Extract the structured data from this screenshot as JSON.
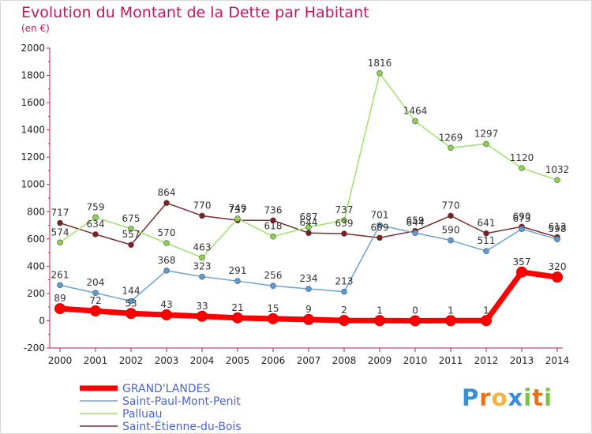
{
  "chart_data": {
    "type": "line",
    "title": "Evolution du Montant de la Dette par Habitant",
    "subtitle": "(en €)",
    "x": [
      "2000",
      "2001",
      "2002",
      "2003",
      "2004",
      "2005",
      "2006",
      "2007",
      "2008",
      "2009",
      "2010",
      "2011",
      "2012",
      "2013",
      "2014"
    ],
    "ylim": [
      -200,
      2000
    ],
    "yticks": [
      -200,
      0,
      200,
      400,
      600,
      800,
      1000,
      1200,
      1400,
      1600,
      1800,
      2000
    ],
    "grid": false,
    "legend_position": "bottom-left",
    "series": [
      {
        "name": "GRAND'LANDES",
        "color": "#ff0000",
        "marker": "#ff0000",
        "values": [
          89,
          72,
          53,
          43,
          33,
          21,
          15,
          9,
          2,
          1,
          0,
          1,
          1,
          357,
          320
        ]
      },
      {
        "name": "Saint-Paul-Mont-Penit",
        "color": "#6aa3d4",
        "marker": "#5b9bd5",
        "values": [
          261,
          204,
          144,
          368,
          323,
          291,
          256,
          234,
          213,
          701,
          644,
          590,
          511,
          673,
          598
        ]
      },
      {
        "name": "Palluau",
        "color": "#9de36a",
        "marker": "#8ad24f",
        "values": [
          574,
          759,
          675,
          570,
          463,
          749,
          618,
          687,
          737,
          1816,
          1464,
          1269,
          1297,
          1120,
          1032
        ]
      },
      {
        "name": "Saint-Étienne-du-Bois",
        "color": "#7a2e2e",
        "marker": "#7a2020",
        "values": [
          717,
          634,
          557,
          864,
          770,
          737,
          736,
          644,
          639,
          609,
          659,
          770,
          641,
          690,
          613
        ]
      }
    ]
  },
  "branding": {
    "logo_text": "Proxiti",
    "logo_letters": [
      "P",
      "r",
      "o",
      "x",
      "i",
      "t",
      "i"
    ],
    "logo_colors": [
      "#3a8fd6",
      "#e8731d",
      "#f2b43c",
      "#3a8fd6",
      "#7cc242",
      "#e8731d",
      "#7cc242"
    ]
  }
}
